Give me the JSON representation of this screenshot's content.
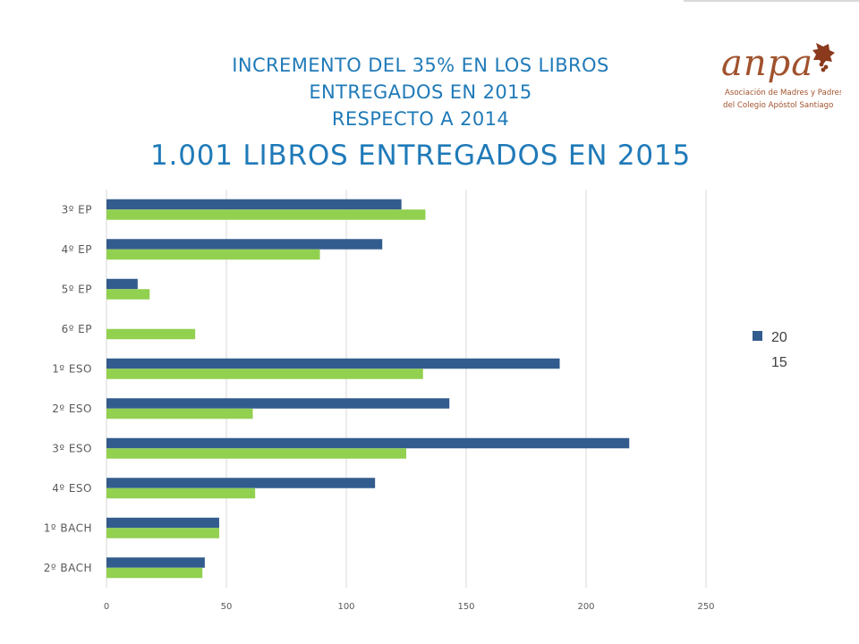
{
  "header": {
    "subtitle_lines": [
      "INCREMENTO DEL 35% EN LOS LIBROS",
      "ENTREGADOS EN 2015",
      "RESPECTO A 2014"
    ],
    "title": "1.001 LIBROS ENTREGADOS EN 2015"
  },
  "logo": {
    "wordmark": "anpa",
    "line1": "Asociación de Madres y Padres",
    "line2": "del Colegio Apóstol Santiago",
    "color": "#a0522d"
  },
  "colors": {
    "series_2015": "#335c8e",
    "series_2014": "#92d050",
    "grid": "#d9d9d9",
    "title": "#1f7ab8"
  },
  "chart_data": {
    "type": "bar",
    "orientation": "horizontal",
    "categories": [
      "3º EP",
      "4º EP",
      "5º EP",
      "6º EP",
      "1º ESO",
      "2º ESO",
      "3º ESO",
      "4º ESO",
      "1º BACH",
      "2º BACH"
    ],
    "series": [
      {
        "name": "20",
        "values": [
          123,
          115,
          13,
          0,
          189,
          143,
          218,
          112,
          47,
          41
        ]
      },
      {
        "name": "15",
        "values": [
          133,
          89,
          18,
          37,
          132,
          61,
          125,
          62,
          47,
          40
        ]
      }
    ],
    "xlim": [
      0,
      250
    ],
    "xticks": [
      0,
      50,
      100,
      150,
      200,
      250
    ],
    "grid": "vertical",
    "legend_position": "right"
  }
}
